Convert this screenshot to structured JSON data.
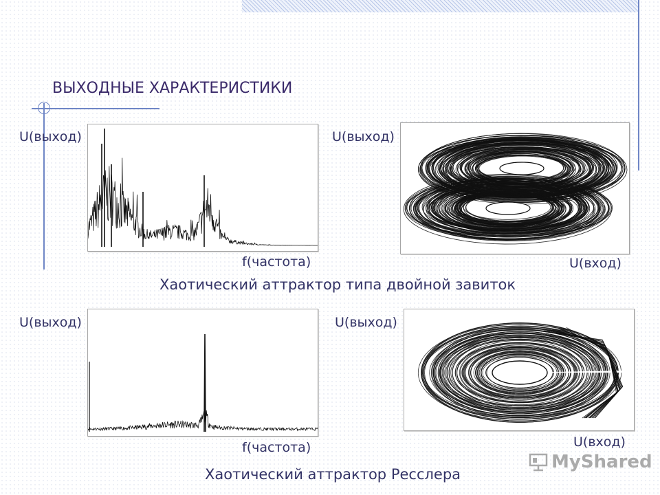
{
  "title": "ВЫХОДНЫЕ ХАРАКТЕРИСТИКИ",
  "row1": {
    "spectrum": {
      "ylabel": "U(выход)",
      "xlabel": "f(частота)"
    },
    "attractor": {
      "ylabel": "U(выход)",
      "xlabel": "U(вход)"
    },
    "caption": "Хаотический аттрактор типа двойной завиток"
  },
  "row2": {
    "spectrum": {
      "ylabel": "U(выход)",
      "xlabel": "f(частота)"
    },
    "attractor": {
      "ylabel": "U(выход)",
      "xlabel": "U(вход)"
    },
    "caption": "Хаотический аттрактор Ресслера"
  },
  "watermark": "MyShared",
  "colors": {
    "accent": "#6f86c6",
    "text": "#333366",
    "title": "#3a2a6a",
    "trace": "#111111"
  }
}
